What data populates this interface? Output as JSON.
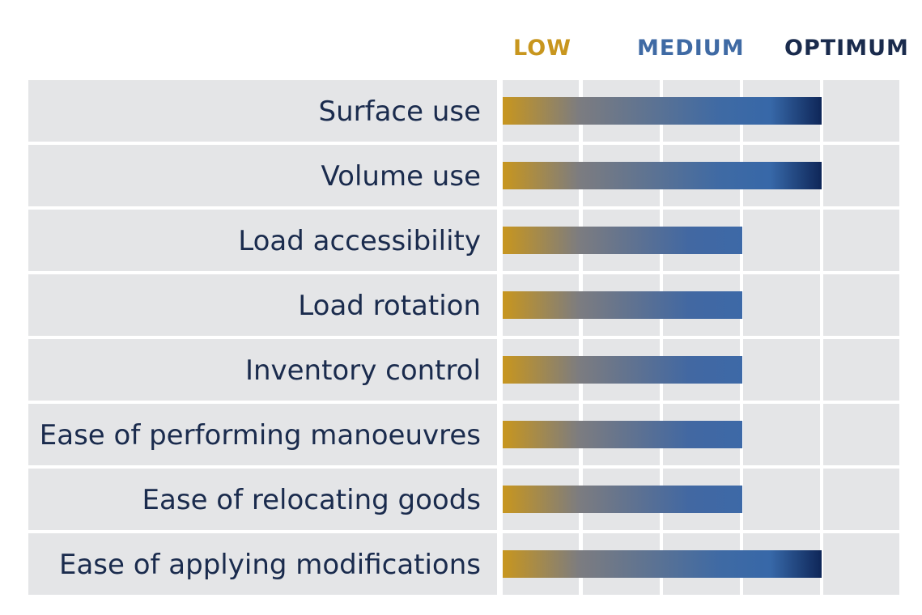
{
  "legend": {
    "low": "LOW",
    "medium": "MEDIUM",
    "optimum": "OPTIMUM"
  },
  "colors": {
    "low": "#c8961e",
    "medium": "#3f6aa4",
    "optimum": "#1a2b4d",
    "row_background": "#e4e5e7",
    "category_text": "#1a2b4d"
  },
  "chart_data": {
    "type": "bar",
    "orientation": "horizontal",
    "scale_levels": [
      "LOW",
      "MEDIUM",
      "OPTIMUM"
    ],
    "xlim": [
      0,
      5
    ],
    "grid": true,
    "legend_position": "top",
    "categories": [
      "Surface use",
      "Volume use",
      "Load accessibility",
      "Load rotation",
      "Inventory control",
      "Ease of performing manoeuvres",
      "Ease of relocating goods",
      "Ease of applying modifications"
    ],
    "values": [
      4,
      4,
      3,
      3,
      3,
      3,
      3,
      4
    ]
  }
}
